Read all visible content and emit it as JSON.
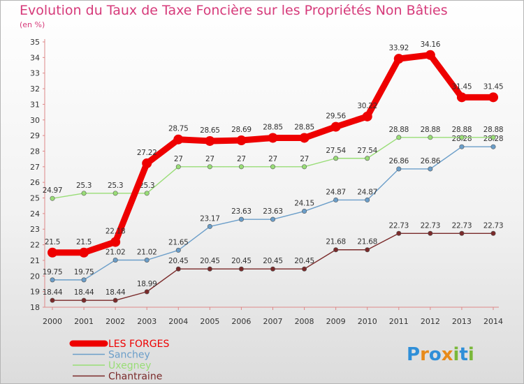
{
  "chart_data": {
    "type": "line",
    "title": "Evolution du Taux de Taxe Foncière sur les Propriétés Non Bâties",
    "subtitle": "(en %)",
    "xlabel": "",
    "ylabel": "",
    "categories": [
      "2000",
      "2001",
      "2002",
      "2003",
      "2004",
      "2005",
      "2006",
      "2007",
      "2008",
      "2009",
      "2010",
      "2011",
      "2012",
      "2013",
      "2014"
    ],
    "ylim": [
      18,
      35
    ],
    "yticks": [
      18,
      19,
      20,
      21,
      22,
      23,
      24,
      25,
      26,
      27,
      28,
      29,
      30,
      31,
      32,
      33,
      34,
      35
    ],
    "grid": false,
    "legend_position": "bottom-left",
    "series": [
      {
        "name": "LES FORGES",
        "color": "#ee0000",
        "values": [
          21.5,
          21.5,
          22.18,
          27.22,
          28.75,
          28.65,
          28.69,
          28.85,
          28.85,
          29.56,
          30.22,
          33.92,
          34.16,
          31.45,
          31.45
        ],
        "labels": [
          "21.5",
          "21.5",
          "22.18",
          "27.22",
          "28.75",
          "28.65",
          "28.69",
          "28.85",
          "28.85",
          "29.56",
          "30.22",
          "33.92",
          "34.16",
          "31.45",
          "31.45"
        ]
      },
      {
        "name": "Sanchey",
        "color": "#6b9ec9",
        "values": [
          19.75,
          19.75,
          21.02,
          21.02,
          21.65,
          23.17,
          23.63,
          23.63,
          24.15,
          24.87,
          24.87,
          26.86,
          26.86,
          28.28,
          28.28
        ],
        "labels": [
          "19.75",
          "19.75",
          "21.02",
          "21.02",
          "21.65",
          "23.17",
          "23.63",
          "23.63",
          "24.15",
          "24.87",
          "24.87",
          "26.86",
          "26.86",
          "28.28",
          "28.28"
        ]
      },
      {
        "name": "Uxegney",
        "color": "#99dd77",
        "values": [
          24.97,
          25.3,
          25.3,
          25.3,
          27,
          27,
          27,
          27,
          27,
          27.54,
          27.54,
          28.88,
          28.88,
          28.88,
          28.88
        ],
        "labels": [
          "24.97",
          "25.3",
          "25.3",
          "25.3",
          "27",
          "27",
          "27",
          "27",
          "27",
          "27.54",
          "27.54",
          "28.88",
          "28.88",
          "28.88",
          "28.88"
        ]
      },
      {
        "name": "Chantraine",
        "color": "#7a2a2a",
        "values": [
          18.44,
          18.44,
          18.44,
          18.99,
          20.45,
          20.45,
          20.45,
          20.45,
          20.45,
          21.68,
          21.68,
          22.73,
          22.73,
          22.73,
          22.73
        ],
        "labels": [
          "18.44",
          "18.44",
          "18.44",
          "18.99",
          "20.45",
          "20.45",
          "20.45",
          "20.45",
          "20.45",
          "21.68",
          "21.68",
          "22.73",
          "22.73",
          "22.73",
          "22.73"
        ]
      }
    ]
  },
  "logo": {
    "text": "Proxiti",
    "letters": [
      "P",
      "r",
      "o",
      "x",
      "i",
      "t",
      "i"
    ],
    "colors": [
      "#2f8fd8",
      "#e88a1a",
      "#2f8fd8",
      "#e88a1a",
      "#7ab83a",
      "#2f8fd8",
      "#7ab83a"
    ]
  }
}
